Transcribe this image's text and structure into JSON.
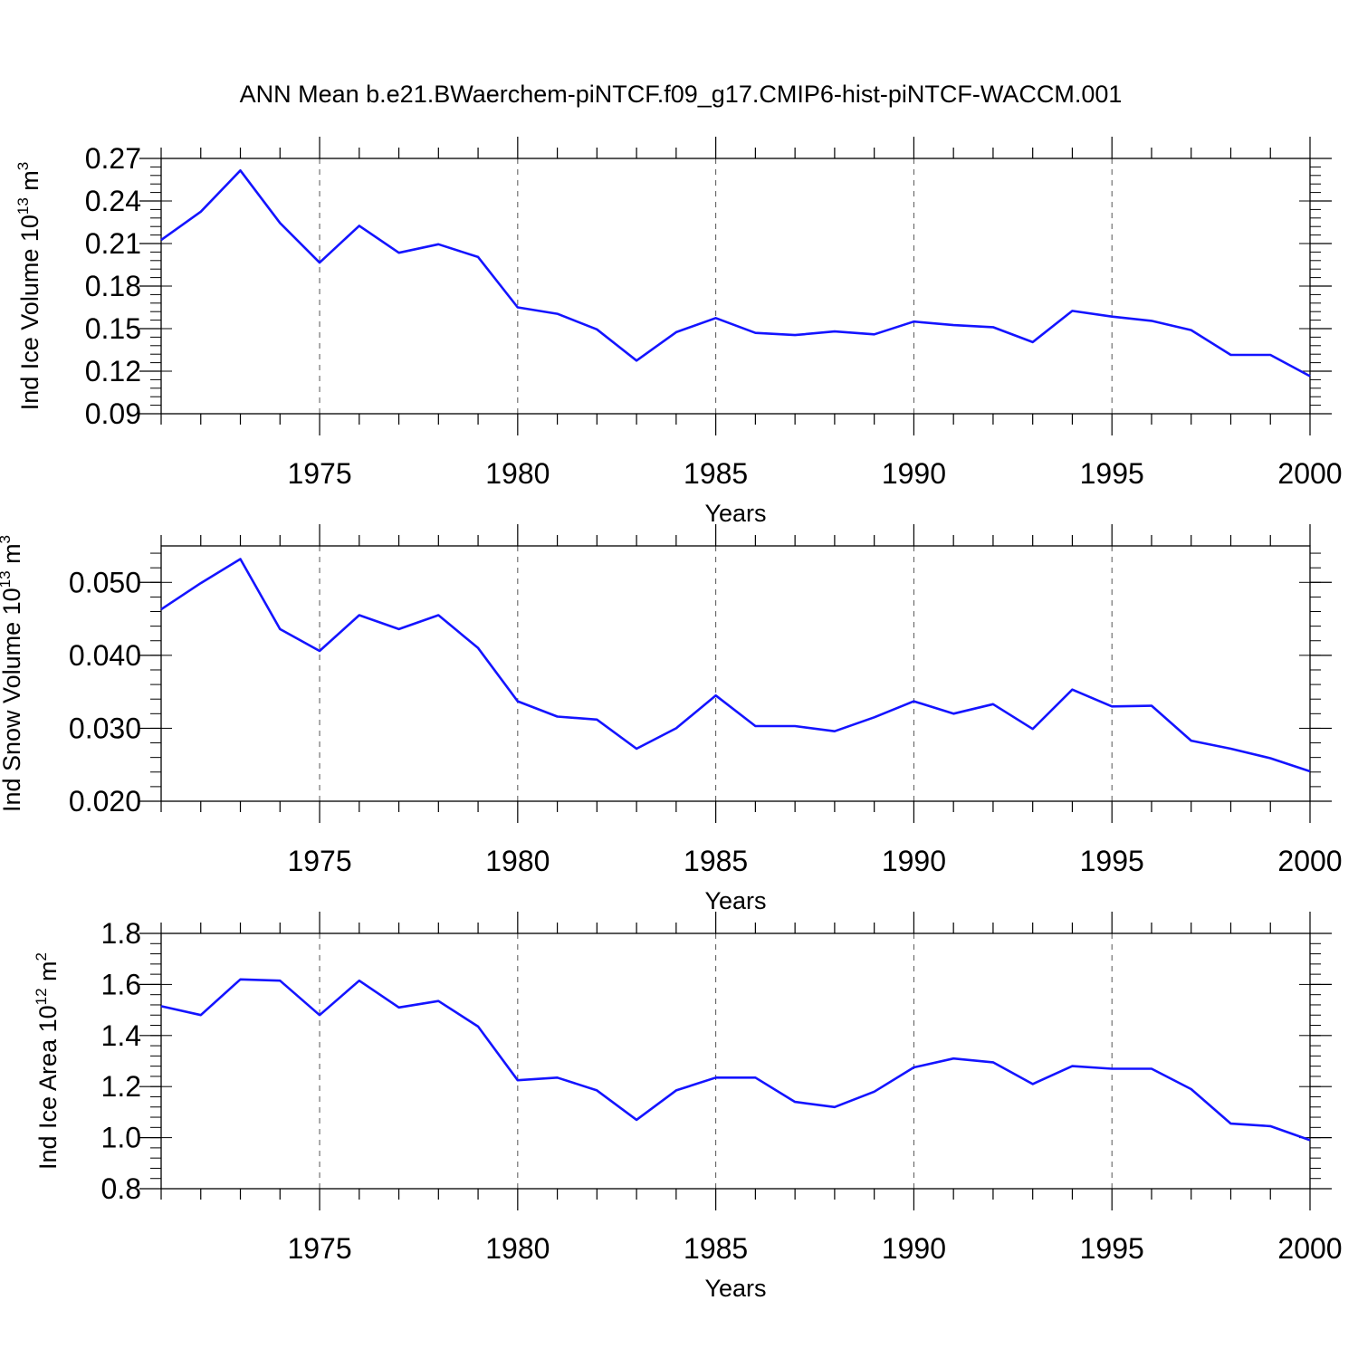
{
  "figure": {
    "title": "ANN Mean b.e21.BWaerchem-piNTCF.f09_g17.CMIP6-hist-piNTCF-WACCM.001",
    "line_color": "#1414ff",
    "background": "#ffffff"
  },
  "chart_data": [
    {
      "type": "line",
      "name": "ice-volume",
      "ylabel": "Ind Ice Volume 10",
      "ylabel_exp": "13",
      "ylabel_unit": " m",
      "ylabel_unit_exp": "3",
      "xlabel": "Years",
      "xlim": [
        1971,
        2000
      ],
      "ylim": [
        0.09,
        0.27
      ],
      "yticks": [
        "0.09",
        "0.12",
        "0.15",
        "0.18",
        "0.21",
        "0.24",
        "0.27"
      ],
      "xticks": [
        "1975",
        "1980",
        "1985",
        "1990",
        "1995",
        "2000"
      ],
      "grid": "vertical-dashed",
      "series": [
        {
          "name": "ice-volume",
          "x": [
            1971,
            1972,
            1973,
            1974,
            1975,
            1976,
            1977,
            1978,
            1979,
            1980,
            1981,
            1982,
            1983,
            1984,
            1985,
            1986,
            1987,
            1988,
            1989,
            1990,
            1991,
            1992,
            1993,
            1994,
            1995,
            1996,
            1997,
            1998,
            1999,
            2000
          ],
          "values": [
            0.2125,
            0.2325,
            0.2615,
            0.2245,
            0.1965,
            0.2225,
            0.2035,
            0.2095,
            0.2005,
            0.165,
            0.1605,
            0.1495,
            0.1275,
            0.1475,
            0.1575,
            0.147,
            0.1455,
            0.148,
            0.146,
            0.155,
            0.1525,
            0.151,
            0.1405,
            0.1625,
            0.1585,
            0.1555,
            0.149,
            0.1315,
            0.1315,
            0.1165
          ]
        }
      ]
    },
    {
      "type": "line",
      "name": "snow-volume",
      "ylabel": "Ind Snow Volume 10",
      "ylabel_exp": "13",
      "ylabel_unit": " m",
      "ylabel_unit_exp": "3",
      "xlabel": "Years",
      "xlim": [
        1971,
        2000
      ],
      "ylim": [
        0.02,
        0.055
      ],
      "yticks": [
        "0.020",
        "0.030",
        "0.040",
        "0.050"
      ],
      "xticks": [
        "1975",
        "1980",
        "1985",
        "1990",
        "1995",
        "2000"
      ],
      "grid": "vertical-dashed",
      "series": [
        {
          "name": "snow-volume",
          "x": [
            1971,
            1972,
            1973,
            1974,
            1975,
            1976,
            1977,
            1978,
            1979,
            1980,
            1981,
            1982,
            1983,
            1984,
            1985,
            1986,
            1987,
            1988,
            1989,
            1990,
            1991,
            1992,
            1993,
            1994,
            1995,
            1996,
            1997,
            1998,
            1999,
            2000
          ],
          "values": [
            0.0463,
            0.0499,
            0.0532,
            0.0436,
            0.0406,
            0.0455,
            0.0436,
            0.0455,
            0.041,
            0.0337,
            0.0316,
            0.0312,
            0.0272,
            0.03,
            0.0345,
            0.0303,
            0.0303,
            0.0296,
            0.0315,
            0.0337,
            0.032,
            0.0333,
            0.0299,
            0.0353,
            0.033,
            0.0331,
            0.0283,
            0.0272,
            0.0259,
            0.0241
          ]
        }
      ]
    },
    {
      "type": "line",
      "name": "ice-area",
      "ylabel": "Ind Ice Area 10",
      "ylabel_exp": "12",
      "ylabel_unit": " m",
      "ylabel_unit_exp": "2",
      "xlabel": "Years",
      "xlim": [
        1971,
        2000
      ],
      "ylim": [
        0.8,
        1.8
      ],
      "yticks": [
        "0.8",
        "1.0",
        "1.2",
        "1.4",
        "1.6",
        "1.8"
      ],
      "xticks": [
        "1975",
        "1980",
        "1985",
        "1990",
        "1995",
        "2000"
      ],
      "grid": "vertical-dashed",
      "series": [
        {
          "name": "ice-area",
          "x": [
            1971,
            1972,
            1973,
            1974,
            1975,
            1976,
            1977,
            1978,
            1979,
            1980,
            1981,
            1982,
            1983,
            1984,
            1985,
            1986,
            1987,
            1988,
            1989,
            1990,
            1991,
            1992,
            1993,
            1994,
            1995,
            1996,
            1997,
            1998,
            1999,
            2000
          ],
          "values": [
            1.515,
            1.48,
            1.62,
            1.615,
            1.48,
            1.615,
            1.51,
            1.535,
            1.435,
            1.225,
            1.235,
            1.185,
            1.07,
            1.185,
            1.235,
            1.235,
            1.14,
            1.12,
            1.18,
            1.275,
            1.31,
            1.295,
            1.21,
            1.28,
            1.27,
            1.27,
            1.19,
            1.055,
            1.045,
            0.99
          ]
        }
      ]
    }
  ]
}
